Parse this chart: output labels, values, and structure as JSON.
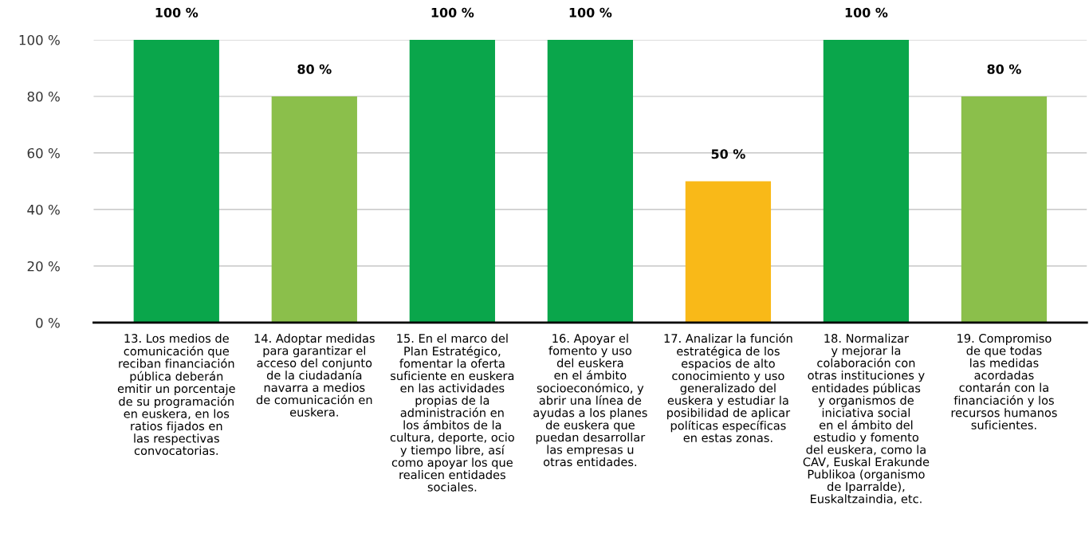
{
  "chart_data": {
    "type": "bar",
    "categories": [
      "13. Los medios de\ncomunicación que\nreciban financiación\npública deberán\nemitir un porcentaje\nde su programación\nen euskera, en los\nratios fijados en\nlas respectivas\nconvocatorias.",
      "14. Adoptar medidas\npara garantizar el\nacceso del conjunto\nde la ciudadanía\nnavarra a medios\nde comunicación en\neuskera.",
      "15. En el marco del\nPlan Estratégico,\nfomentar la oferta\nsuficiente en euskera\nen las actividades\npropias de la\nadministración en\nlos ámbitos de la\ncultura, deporte, ocio\ny tiempo libre, así\ncomo apoyar los que\nrealicen entidades\nsociales.",
      "16. Apoyar el\nfomento y uso\ndel euskera\nen el ámbito\nsocioeconómico, y\nabrir una línea de\nayudas a los planes\nde euskera que\npuedan desarrollar\nlas empresas u\notras entidades.",
      "17. Analizar la función\nestratégica de los\nespacios de alto\nconocimiento y uso\ngeneralizado del\neuskera y estudiar la\nposibilidad de aplicar\npolíticas específicas\nen estas zonas.",
      "18. Normalizar\ny mejorar la\ncolaboración con\notras instituciones y\nentidades públicas\ny organismos de\niniciativa social\nen el ámbito del\nestudio y fomento\ndel euskera, como la\nCAV, Euskal Erakunde\nPublikoa (organismo\nde Iparralde),\nEuskaltzaindia, etc.",
      "19. Compromiso\nde que todas\nlas medidas\nacordadas\ncontarán con la\nfinanciación y los\nrecursos humanos\nsuficientes."
    ],
    "values": [
      100,
      80,
      100,
      100,
      50,
      100,
      80
    ],
    "colors": [
      "#0aa64b",
      "#8bbf4b",
      "#0aa64b",
      "#0aa64b",
      "#f9b918",
      "#0aa64b",
      "#8bbf4b"
    ],
    "value_labels": [
      "100 %",
      "80 %",
      "100 %",
      "100 %",
      "50 %",
      "100 %",
      "80 %"
    ],
    "ylim": [
      0,
      100
    ],
    "yticks": [
      {
        "value": 0,
        "label": "0 %"
      },
      {
        "value": 20,
        "label": "20 %"
      },
      {
        "value": 40,
        "label": "40 %"
      },
      {
        "value": 60,
        "label": "60 %"
      },
      {
        "value": 80,
        "label": "80 %"
      },
      {
        "value": 100,
        "label": "100 %"
      }
    ],
    "grid": "y"
  }
}
